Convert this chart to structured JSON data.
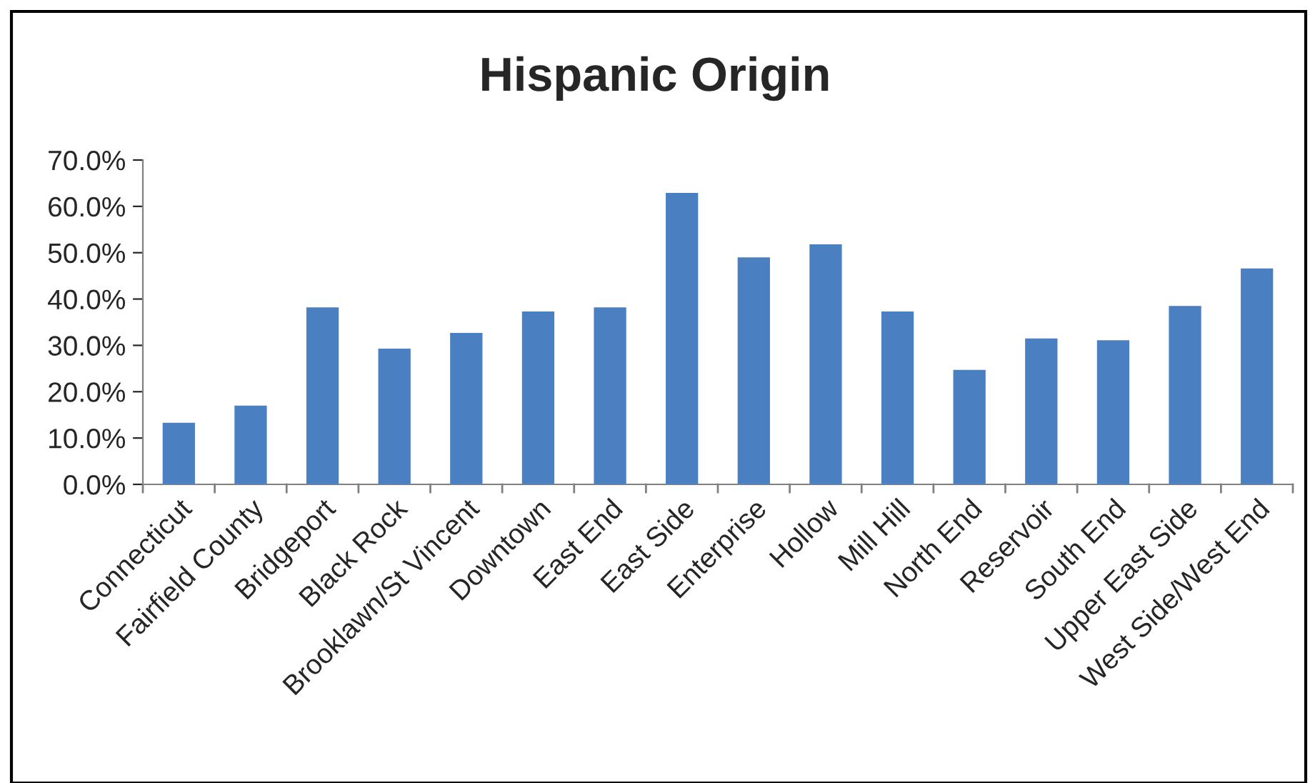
{
  "chart_data": {
    "type": "bar",
    "title": "Hispanic Origin",
    "categories": [
      "Connecticut",
      "Fairfield County",
      "Bridgeport",
      "Black Rock",
      "Brooklawn/St Vincent",
      "Downtown",
      "East End",
      "East Side",
      "Enterprise",
      "Hollow",
      "Mill Hill",
      "North End",
      "Reservoir",
      "South End",
      "Upper East Side",
      "West Side/West End"
    ],
    "values": [
      13.3,
      17.0,
      38.2,
      29.3,
      32.7,
      37.3,
      38.2,
      62.9,
      49.0,
      51.8,
      37.3,
      24.7,
      31.5,
      31.1,
      38.5,
      46.6
    ],
    "color": "#4a7fc1",
    "ylim": [
      0,
      70
    ],
    "yticks": [
      {
        "value": 0,
        "label": "0.0%"
      },
      {
        "value": 10,
        "label": "10.0%"
      },
      {
        "value": 20,
        "label": "20.0%"
      },
      {
        "value": 30,
        "label": "30.0%"
      },
      {
        "value": 40,
        "label": "40.0%"
      },
      {
        "value": 50,
        "label": "50.0%"
      },
      {
        "value": 60,
        "label": "60.0%"
      },
      {
        "value": 70,
        "label": "70.0%"
      }
    ],
    "grid": false
  }
}
